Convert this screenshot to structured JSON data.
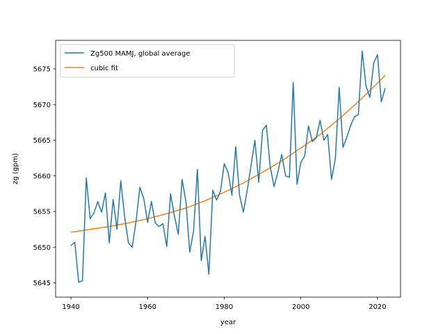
{
  "chart_data": {
    "type": "line",
    "title": "",
    "xlabel": "year",
    "ylabel": "zg (gpm)",
    "xlim": [
      1936,
      2026
    ],
    "ylim": [
      5643,
      5679
    ],
    "xticks": [
      1940,
      1960,
      1980,
      2000,
      2020
    ],
    "yticks": [
      5645,
      5650,
      5655,
      5660,
      5665,
      5670,
      5675
    ],
    "grid": false,
    "legend_position": "top-left",
    "series": [
      {
        "name": "Zg500 MAMJ, global average",
        "color": "#1f77b4",
        "x": [
          1940,
          1941,
          1942,
          1943,
          1944,
          1945,
          1946,
          1947,
          1948,
          1949,
          1950,
          1951,
          1952,
          1953,
          1954,
          1955,
          1956,
          1957,
          1958,
          1959,
          1960,
          1961,
          1962,
          1963,
          1964,
          1965,
          1966,
          1967,
          1968,
          1969,
          1970,
          1971,
          1972,
          1973,
          1974,
          1975,
          1976,
          1977,
          1978,
          1979,
          1980,
          1981,
          1982,
          1983,
          1984,
          1985,
          1986,
          1987,
          1988,
          1989,
          1990,
          1991,
          1992,
          1993,
          1994,
          1995,
          1996,
          1997,
          1998,
          1999,
          2000,
          2001,
          2002,
          2003,
          2004,
          2005,
          2006,
          2007,
          2008,
          2009,
          2010,
          2011,
          2012,
          2013,
          2014,
          2015,
          2016,
          2017,
          2018,
          2019,
          2020,
          2021,
          2022
        ],
        "y": [
          5650.2,
          5650.7,
          5645.1,
          5645.3,
          5659.7,
          5654.0,
          5654.8,
          5656.4,
          5654.9,
          5657.6,
          5650.6,
          5656.7,
          5652.5,
          5659.3,
          5654.3,
          5650.6,
          5650.0,
          5653.7,
          5658.4,
          5656.8,
          5653.5,
          5656.4,
          5653.4,
          5652.9,
          5653.3,
          5650.1,
          5657.5,
          5654.4,
          5651.8,
          5659.5,
          5656.4,
          5649.3,
          5652.3,
          5660.9,
          5648.1,
          5651.5,
          5646.2,
          5658.0,
          5656.6,
          5657.8,
          5661.7,
          5660.5,
          5657.3,
          5664.1,
          5657.3,
          5654.9,
          5658.0,
          5661.5,
          5665.0,
          5659.1,
          5666.4,
          5667.1,
          5661.3,
          5658.5,
          5660.5,
          5663.0,
          5660.0,
          5659.8,
          5673.1,
          5658.8,
          5661.9,
          5662.8,
          5667.0,
          5664.8,
          5665.3,
          5667.8,
          5665.0,
          5665.8,
          5659.5,
          5662.4,
          5672.4,
          5664.0,
          5665.4,
          5667.1,
          5668.3,
          5668.6,
          5677.5,
          5672.6,
          5671.0,
          5675.8,
          5677.0,
          5670.4,
          5672.3
        ]
      },
      {
        "name": "cubic fit",
        "color": "#ff7f0e",
        "x": [
          1940,
          1945,
          1950,
          1955,
          1960,
          1965,
          1970,
          1975,
          1980,
          1985,
          1990,
          1995,
          2000,
          2005,
          2010,
          2015,
          2020,
          2022
        ],
        "y": [
          5652.1,
          5652.5,
          5652.9,
          5653.4,
          5654.0,
          5654.7,
          5655.5,
          5656.5,
          5657.7,
          5659.0,
          5660.5,
          5662.1,
          5663.9,
          5665.8,
          5668.0,
          5670.4,
          5673.0,
          5674.1
        ]
      }
    ]
  }
}
